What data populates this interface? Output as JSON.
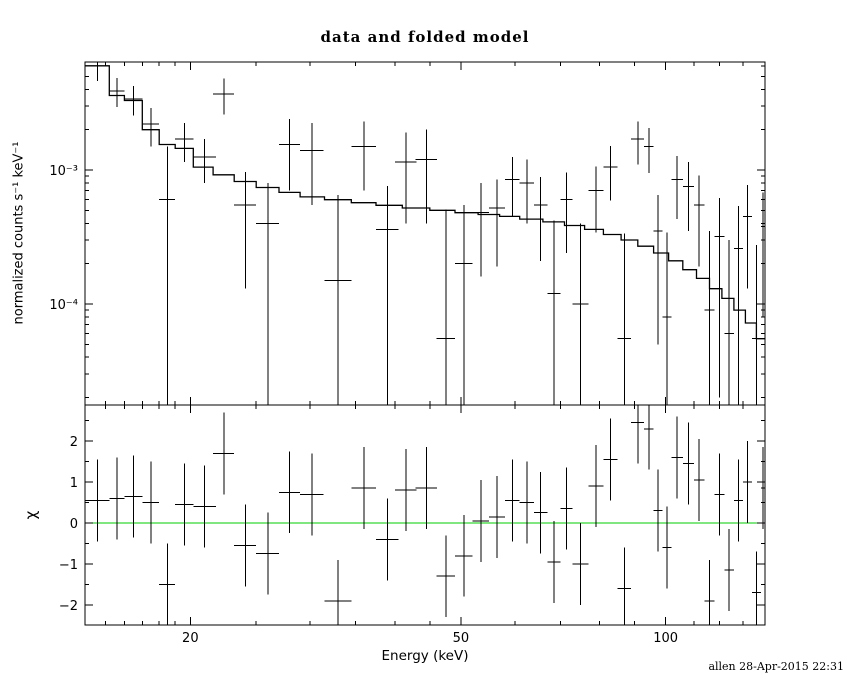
{
  "chart_data": {
    "type": "scatter",
    "title": "data and folded model",
    "xlabel": "Energy (keV)",
    "x_scale": "log",
    "xlim": [
      14,
      140
    ],
    "x_major_ticks": [
      20,
      50,
      100
    ],
    "x_minor_ticks": [
      15,
      16,
      17,
      18,
      19,
      25,
      30,
      35,
      40,
      45,
      60,
      70,
      80,
      90,
      110,
      120,
      130,
      140
    ],
    "footer": "allen 28-Apr-2015 22:31",
    "colors": {
      "data": "#000000",
      "model": "#000000",
      "zero_line": "#00cc00",
      "background": "#ffffff"
    },
    "top_panel": {
      "ylabel": "normalized counts s⁻¹ keV⁻¹",
      "y_scale": "log",
      "ylim": [
        1.76e-05,
        0.0064
      ],
      "y_major_ticks": [
        {
          "value": 0.001,
          "label": "10⁻³"
        },
        {
          "value": 0.0001,
          "label": "10⁻⁴"
        }
      ],
      "model_step": {
        "edges": [
          14.0,
          15.2,
          16.0,
          17.0,
          18.0,
          19.0,
          20.2,
          21.6,
          23.2,
          25.0,
          27.0,
          29.0,
          31.5,
          34.5,
          37.5,
          41.0,
          45.0,
          49.0,
          53.0,
          57.0,
          61.0,
          66.0,
          71.0,
          76.0,
          81.0,
          86.0,
          91.0,
          96.0,
          101.0,
          106.0,
          111.0,
          116.0,
          121.0,
          126.0,
          131.0,
          136.0,
          140.0
        ],
        "values": [
          0.006,
          0.0036,
          0.0033,
          0.002,
          0.00155,
          0.00145,
          0.00105,
          0.00092,
          0.00082,
          0.00074,
          0.00068,
          0.00063,
          0.0006,
          0.00057,
          0.000545,
          0.00052,
          0.0005,
          0.00048,
          0.000465,
          0.00045,
          0.00043,
          0.00041,
          0.000385,
          0.00036,
          0.00033,
          0.0003,
          0.00027,
          0.00024,
          0.00021,
          0.00018,
          0.000155,
          0.00013,
          0.00011,
          9e-05,
          7.2e-05,
          5.5e-05
        ]
      },
      "data_points": [
        [
          14.6,
          0.6,
          0.006,
          0.0014
        ],
        [
          15.6,
          0.4,
          0.0039,
          0.00095
        ],
        [
          16.5,
          0.5,
          0.0034,
          0.00085
        ],
        [
          17.5,
          0.5,
          0.0022,
          0.0007
        ],
        [
          18.5,
          0.5,
          0.0006,
          0.0009
        ],
        [
          19.6,
          0.6,
          0.0017,
          0.00055
        ],
        [
          21.0,
          0.8,
          0.00125,
          0.00045
        ],
        [
          22.4,
          0.8,
          0.0037,
          0.0011
        ],
        [
          24.1,
          0.9,
          0.00055,
          0.00042
        ],
        [
          26.0,
          1.0,
          0.0004,
          0.0004
        ],
        [
          28.0,
          1.0,
          0.00155,
          0.00085
        ],
        [
          30.2,
          1.2,
          0.0014,
          0.00085
        ],
        [
          33.0,
          1.5,
          0.00015,
          0.0005
        ],
        [
          36.0,
          1.5,
          0.0015,
          0.0008
        ],
        [
          39.0,
          1.5,
          0.00036,
          0.0004
        ],
        [
          41.5,
          1.5,
          0.00115,
          0.00075
        ],
        [
          44.5,
          1.6,
          0.0012,
          0.0008
        ],
        [
          47.5,
          1.5,
          5.5e-05,
          0.00045
        ],
        [
          50.5,
          1.5,
          0.0002,
          0.00035
        ],
        [
          53.5,
          1.5,
          0.00048,
          0.00032
        ],
        [
          56.5,
          1.5,
          0.00052,
          0.00033
        ],
        [
          59.5,
          1.5,
          0.00085,
          0.0004
        ],
        [
          62.5,
          1.5,
          0.0008,
          0.0004
        ],
        [
          65.5,
          1.5,
          0.00055,
          0.00034
        ],
        [
          68.5,
          1.5,
          0.00012,
          0.0003
        ],
        [
          71.5,
          1.5,
          0.0006,
          0.00036
        ],
        [
          75.0,
          2.0,
          0.0001,
          0.0003
        ],
        [
          79.0,
          2.0,
          0.0007,
          0.00036
        ],
        [
          83.0,
          2.0,
          0.00105,
          0.00046
        ],
        [
          87.0,
          2.0,
          5.5e-05,
          0.00028
        ],
        [
          91.0,
          2.0,
          0.0017,
          0.0006
        ],
        [
          94.5,
          1.5,
          0.0015,
          0.00055
        ],
        [
          97.5,
          1.5,
          0.00035,
          0.0003
        ],
        [
          100.5,
          1.5,
          8e-05,
          0.00026
        ],
        [
          104.0,
          2.0,
          0.00085,
          0.00042
        ],
        [
          108.0,
          2.0,
          0.00075,
          0.0004
        ],
        [
          112.0,
          2.0,
          0.00055,
          0.00036
        ],
        [
          116.0,
          2.0,
          9e-05,
          0.00026
        ],
        [
          120.0,
          2.0,
          0.00032,
          0.0003
        ],
        [
          124.0,
          2.0,
          6e-05,
          0.00024
        ],
        [
          128.0,
          2.0,
          0.00026,
          0.00028
        ],
        [
          132.0,
          2.0,
          0.00045,
          0.00032
        ],
        [
          136.0,
          2.0,
          5.5e-05,
          0.00022
        ],
        [
          139.0,
          1.0,
          0.00038,
          0.0003
        ]
      ]
    },
    "bottom_panel": {
      "ylabel": "χ",
      "y_scale": "linear",
      "ylim": [
        -2.49,
        2.88
      ],
      "y_major_ticks": [
        -2,
        -1,
        0,
        1,
        2
      ],
      "y_minor_step": 0.5,
      "zero_line_value": 0,
      "residuals": [
        [
          14.6,
          0.6,
          0.55,
          1.0
        ],
        [
          15.6,
          0.4,
          0.6,
          1.0
        ],
        [
          16.5,
          0.5,
          0.65,
          1.0
        ],
        [
          17.5,
          0.5,
          0.5,
          1.0
        ],
        [
          18.5,
          0.5,
          -1.5,
          1.0
        ],
        [
          19.6,
          0.6,
          0.45,
          1.0
        ],
        [
          21.0,
          0.8,
          0.4,
          1.0
        ],
        [
          22.4,
          0.8,
          1.7,
          1.0
        ],
        [
          24.1,
          0.9,
          -0.55,
          1.0
        ],
        [
          26.0,
          1.0,
          -0.75,
          1.0
        ],
        [
          28.0,
          1.0,
          0.75,
          1.0
        ],
        [
          30.2,
          1.2,
          0.7,
          1.0
        ],
        [
          33.0,
          1.5,
          -1.9,
          1.0
        ],
        [
          36.0,
          1.5,
          0.85,
          1.0
        ],
        [
          39.0,
          1.5,
          -0.4,
          1.0
        ],
        [
          41.5,
          1.5,
          0.8,
          1.0
        ],
        [
          44.5,
          1.6,
          0.85,
          1.0
        ],
        [
          47.5,
          1.5,
          -1.3,
          1.0
        ],
        [
          50.5,
          1.5,
          -0.8,
          1.0
        ],
        [
          53.5,
          1.5,
          0.05,
          1.0
        ],
        [
          56.5,
          1.5,
          0.15,
          1.0
        ],
        [
          59.5,
          1.5,
          0.55,
          1.0
        ],
        [
          62.5,
          1.5,
          0.5,
          1.0
        ],
        [
          65.5,
          1.5,
          0.25,
          1.0
        ],
        [
          68.5,
          1.5,
          -0.95,
          1.0
        ],
        [
          71.5,
          1.5,
          0.35,
          1.0
        ],
        [
          75.0,
          2.0,
          -1.0,
          1.0
        ],
        [
          79.0,
          2.0,
          0.9,
          1.0
        ],
        [
          83.0,
          2.0,
          1.55,
          1.0
        ],
        [
          87.0,
          2.0,
          -1.6,
          1.0
        ],
        [
          91.0,
          2.0,
          2.45,
          1.0
        ],
        [
          94.5,
          1.5,
          2.3,
          1.0
        ],
        [
          97.5,
          1.5,
          0.3,
          1.0
        ],
        [
          100.5,
          1.5,
          -0.6,
          1.0
        ],
        [
          104.0,
          2.0,
          1.6,
          1.0
        ],
        [
          108.0,
          2.0,
          1.45,
          1.0
        ],
        [
          112.0,
          2.0,
          1.05,
          1.0
        ],
        [
          116.0,
          2.0,
          -1.9,
          1.0
        ],
        [
          120.0,
          2.0,
          0.7,
          1.0
        ],
        [
          124.0,
          2.0,
          -1.15,
          1.0
        ],
        [
          128.0,
          2.0,
          0.55,
          1.0
        ],
        [
          132.0,
          2.0,
          1.0,
          1.0
        ],
        [
          136.0,
          2.0,
          -1.7,
          1.0
        ],
        [
          139.0,
          1.0,
          0.85,
          1.0
        ]
      ]
    }
  }
}
